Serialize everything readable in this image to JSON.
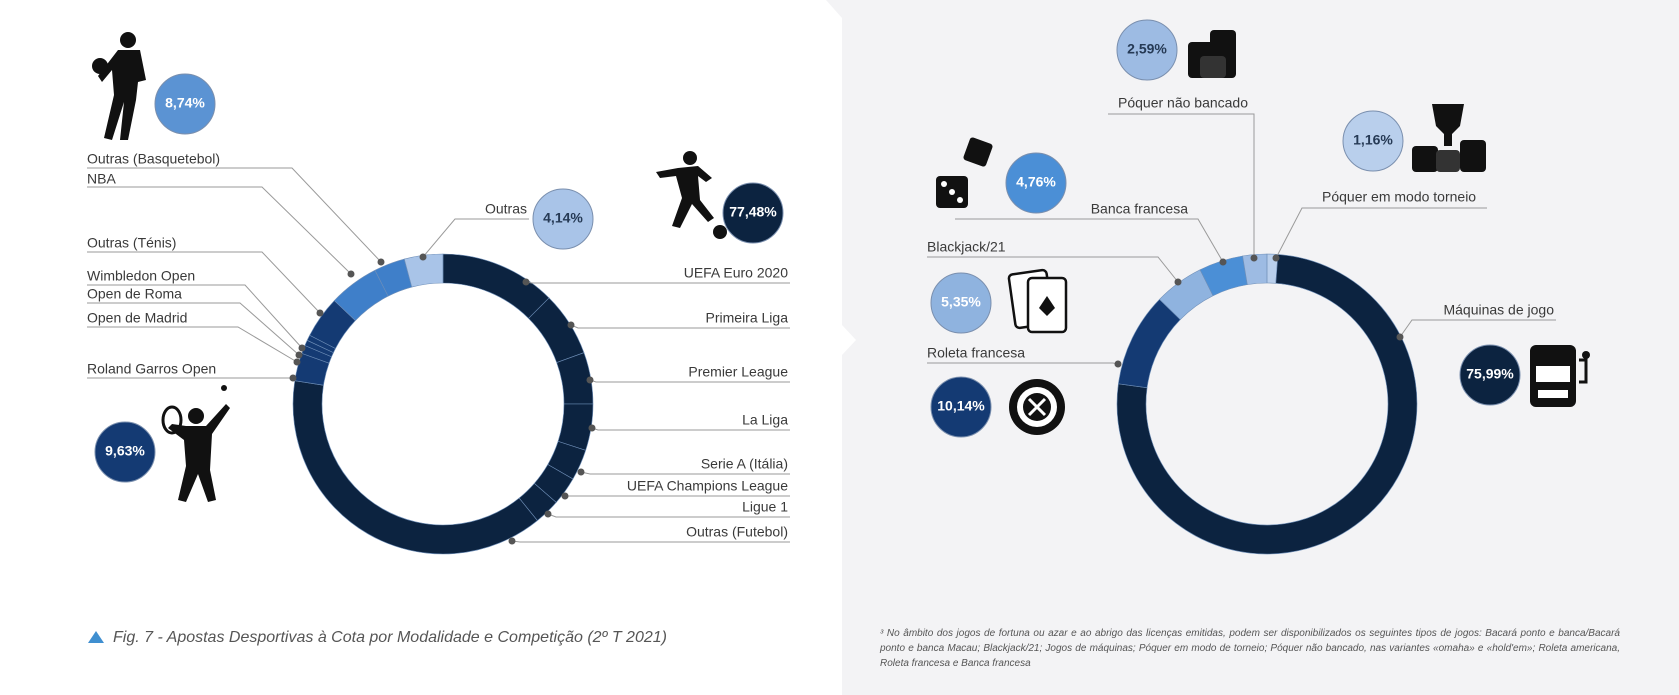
{
  "chart_data": [
    {
      "type": "donut",
      "categories": [
        "UEFA Euro 2020",
        "Primeira Liga",
        "Premier League",
        "La Liga",
        "Serie A (Itália)",
        "UEFA Champions League",
        "Ligue 1",
        "Outras (Futebol)",
        "Roland Garros Open",
        "Open de Madrid",
        "Open de Roma",
        "Wimbledon Open",
        "Outras (Ténis)",
        "NBA",
        "Outras (Basquetebol)",
        "Outras"
      ],
      "values": [
        12.5,
        6.94,
        5.56,
        5.0,
        3.33,
        3.06,
        2.78,
        38.31,
        3.0,
        0.9,
        0.6,
        0.6,
        4.53,
        5.4,
        3.34,
        4.14
      ],
      "colors": [
        "#0c2340",
        "#0c2340",
        "#0c2340",
        "#0c2340",
        "#0c2340",
        "#0c2340",
        "#0c2340",
        "#0c2340",
        "#143a73",
        "#143a73",
        "#143a73",
        "#143a73",
        "#143a73",
        "#3f7fc9",
        "#3f7fc9",
        "#a9c4e8"
      ],
      "groups": {
        "values": [
          77.48,
          9.63,
          8.74,
          4.14
        ],
        "value_labels": [
          "77,48%",
          "9,63%",
          "8,74%",
          "4,14%"
        ],
        "colors": [
          "#0c2340",
          "#143a73",
          "#5b93d3",
          "#a9c4e8"
        ]
      }
    },
    {
      "type": "donut",
      "categories": [
        "Póquer em modo torneio",
        "Máquinas de jogo",
        "Roleta francesa",
        "Blackjack/21",
        "Banca francesa",
        "Póquer não bancado"
      ],
      "values": [
        1.16,
        75.99,
        10.14,
        5.35,
        4.76,
        2.59
      ],
      "value_labels": [
        "1,16%",
        "75,99%",
        "10,14%",
        "5,35%",
        "4,76%",
        "2,59%"
      ],
      "colors": [
        "#b9cfec",
        "#0c2340",
        "#143a73",
        "#8fb3df",
        "#4b8fd6",
        "#9dbbe3"
      ]
    }
  ],
  "caption": "Fig. 7 - Apostas Desportivas à Cota por Modalidade e Competição (2º T 2021)",
  "footnote": "³ No âmbito dos jogos de fortuna ou azar e ao abrigo das licenças emitidas, podem ser disponibilizados os seguintes tipos de jogos: Bacará ponto e banca/Bacará ponto e banca Macau; Blackjack/21; Jogos de máquinas; Póquer em modo de torneio; Póquer não bancado, nas variantes «omaha» e «hold'em»; Roleta americana, Roleta francesa e Banca francesa"
}
